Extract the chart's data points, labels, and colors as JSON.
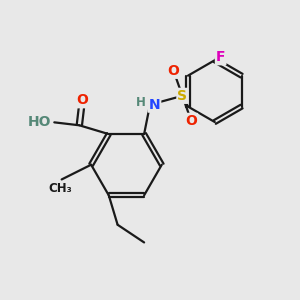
{
  "bg_color": "#e8e8e8",
  "bond_color": "#1a1a1a",
  "bond_width": 1.6,
  "dbo": 0.07,
  "atom_colors": {
    "O": "#ee2200",
    "N": "#2244ff",
    "S": "#ccaa00",
    "F": "#dd00bb",
    "H": "#558877",
    "C": "#1a1a1a"
  },
  "fs": 10,
  "fss": 8.5
}
